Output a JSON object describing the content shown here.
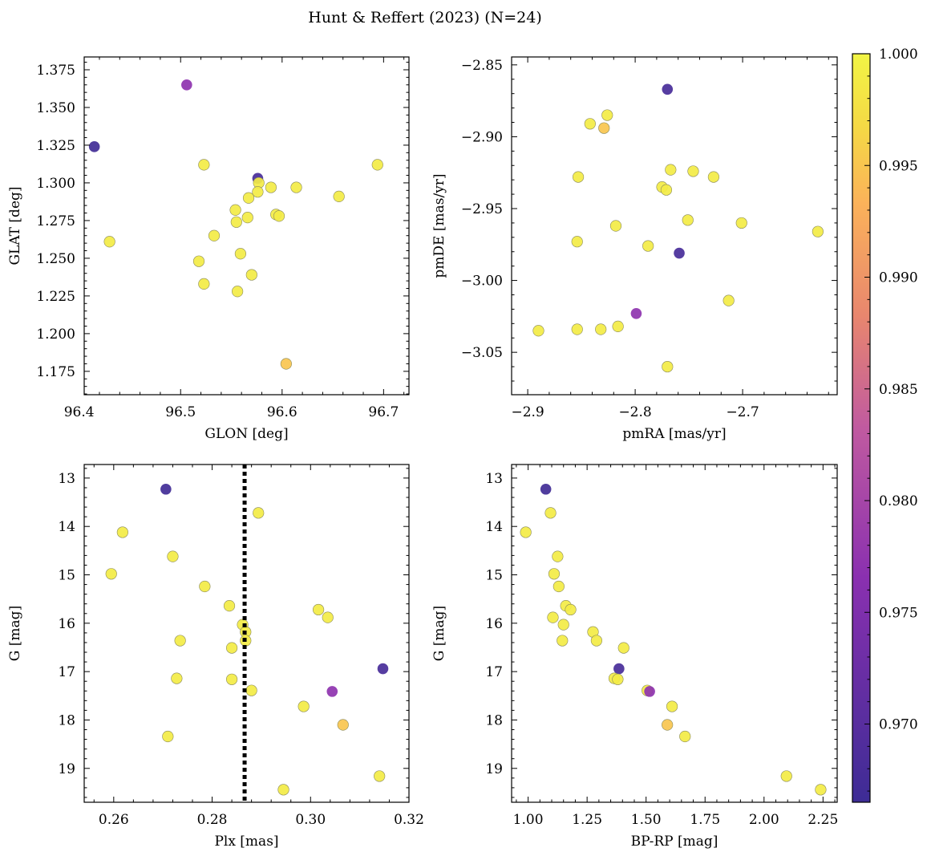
{
  "figure": {
    "title": "Hunt & Reffert (2023) (N=24)"
  },
  "chart_data": [
    {
      "type": "scatter",
      "xlabel": "GLON [deg]",
      "ylabel": "GLAT [deg]",
      "xlim": [
        96.405,
        96.725
      ],
      "ylim": [
        1.1595,
        1.3835
      ],
      "xticks": [
        96.4,
        96.5,
        96.6,
        96.7
      ],
      "xtick_labels": [
        "96.4",
        "96.5",
        "96.6",
        "96.7"
      ],
      "yticks": [
        1.175,
        1.2,
        1.225,
        1.25,
        1.275,
        1.3,
        1.325,
        1.35,
        1.375
      ],
      "ytick_labels": [
        "1.175",
        "1.200",
        "1.225",
        "1.250",
        "1.275",
        "1.300",
        "1.325",
        "1.350",
        "1.375"
      ],
      "y_inverted": false,
      "grid": false,
      "points": [
        {
          "x": 96.506,
          "y": 1.365,
          "p": 0.977
        },
        {
          "x": 96.415,
          "y": 1.324,
          "p": 0.967
        },
        {
          "x": 96.523,
          "y": 1.312,
          "p": 0.999
        },
        {
          "x": 96.694,
          "y": 1.312,
          "p": 0.999
        },
        {
          "x": 96.576,
          "y": 1.303,
          "p": 0.968
        },
        {
          "x": 96.577,
          "y": 1.3,
          "p": 0.999
        },
        {
          "x": 96.589,
          "y": 1.297,
          "p": 0.999
        },
        {
          "x": 96.614,
          "y": 1.297,
          "p": 0.999
        },
        {
          "x": 96.576,
          "y": 1.294,
          "p": 0.999
        },
        {
          "x": 96.567,
          "y": 1.29,
          "p": 0.999
        },
        {
          "x": 96.656,
          "y": 1.291,
          "p": 0.999
        },
        {
          "x": 96.554,
          "y": 1.282,
          "p": 0.999
        },
        {
          "x": 96.594,
          "y": 1.279,
          "p": 0.999
        },
        {
          "x": 96.597,
          "y": 1.278,
          "p": 0.999
        },
        {
          "x": 96.566,
          "y": 1.277,
          "p": 0.999
        },
        {
          "x": 96.555,
          "y": 1.274,
          "p": 0.999
        },
        {
          "x": 96.533,
          "y": 1.265,
          "p": 0.999
        },
        {
          "x": 96.43,
          "y": 1.261,
          "p": 0.999
        },
        {
          "x": 96.559,
          "y": 1.253,
          "p": 0.999
        },
        {
          "x": 96.518,
          "y": 1.248,
          "p": 0.999
        },
        {
          "x": 96.57,
          "y": 1.239,
          "p": 0.999
        },
        {
          "x": 96.523,
          "y": 1.233,
          "p": 0.999
        },
        {
          "x": 96.556,
          "y": 1.228,
          "p": 0.999
        },
        {
          "x": 96.604,
          "y": 1.18,
          "p": 0.995
        }
      ]
    },
    {
      "type": "scatter",
      "xlabel": "pmRA [mas/yr]",
      "ylabel": "pmDE [mas/yr]",
      "xlim": [
        -2.915,
        -2.612
      ],
      "ylim": [
        -3.0795,
        -2.8445
      ],
      "xticks": [
        -2.9,
        -2.8,
        -2.7
      ],
      "xtick_labels": [
        "−2.9",
        "−2.8",
        "−2.7"
      ],
      "yticks": [
        -3.05,
        -3.0,
        -2.95,
        -2.9,
        -2.85
      ],
      "ytick_labels": [
        "−3.05",
        "−3.00",
        "−2.95",
        "−2.90",
        "−2.85"
      ],
      "y_inverted": false,
      "grid": false,
      "points": [
        {
          "x": -2.77,
          "y": -2.867,
          "p": 0.968
        },
        {
          "x": -2.826,
          "y": -2.885,
          "p": 0.999
        },
        {
          "x": -2.842,
          "y": -2.891,
          "p": 0.999
        },
        {
          "x": -2.829,
          "y": -2.894,
          "p": 0.995
        },
        {
          "x": -2.767,
          "y": -2.923,
          "p": 0.999
        },
        {
          "x": -2.746,
          "y": -2.924,
          "p": 0.999
        },
        {
          "x": -2.727,
          "y": -2.928,
          "p": 0.999
        },
        {
          "x": -2.853,
          "y": -2.928,
          "p": 0.999
        },
        {
          "x": -2.775,
          "y": -2.935,
          "p": 0.999
        },
        {
          "x": -2.771,
          "y": -2.937,
          "p": 0.999
        },
        {
          "x": -2.751,
          "y": -2.958,
          "p": 0.999
        },
        {
          "x": -2.701,
          "y": -2.96,
          "p": 0.999
        },
        {
          "x": -2.818,
          "y": -2.962,
          "p": 0.999
        },
        {
          "x": -2.63,
          "y": -2.966,
          "p": 0.999
        },
        {
          "x": -2.854,
          "y": -2.973,
          "p": 0.999
        },
        {
          "x": -2.788,
          "y": -2.976,
          "p": 0.999
        },
        {
          "x": -2.759,
          "y": -2.981,
          "p": 0.968
        },
        {
          "x": -2.713,
          "y": -3.014,
          "p": 0.999
        },
        {
          "x": -2.799,
          "y": -3.023,
          "p": 0.977
        },
        {
          "x": -2.816,
          "y": -3.032,
          "p": 0.999
        },
        {
          "x": -2.89,
          "y": -3.035,
          "p": 0.999
        },
        {
          "x": -2.854,
          "y": -3.034,
          "p": 0.999
        },
        {
          "x": -2.832,
          "y": -3.034,
          "p": 0.999
        },
        {
          "x": -2.77,
          "y": -3.06,
          "p": 0.999
        }
      ]
    },
    {
      "type": "scatter",
      "xlabel": "Plx [mas]",
      "ylabel": "G [mag]",
      "xlim": [
        0.254,
        0.32
      ],
      "ylim": [
        19.7,
        12.72
      ],
      "xticks": [
        0.26,
        0.28,
        0.3,
        0.32
      ],
      "xtick_labels": [
        "0.26",
        "0.28",
        "0.30",
        "0.32"
      ],
      "yticks": [
        13,
        14,
        15,
        16,
        17,
        18,
        19
      ],
      "ytick_labels": [
        "13",
        "14",
        "15",
        "16",
        "17",
        "18",
        "19"
      ],
      "y_inverted": true,
      "grid": false,
      "vline": {
        "x": 0.2866,
        "style": "dotted",
        "color": "#000000"
      },
      "points": [
        {
          "x": 0.2706,
          "y": 13.23,
          "p": 0.967
        },
        {
          "x": 0.2894,
          "y": 13.72,
          "p": 0.999
        },
        {
          "x": 0.2618,
          "y": 14.12,
          "p": 0.999
        },
        {
          "x": 0.272,
          "y": 14.62,
          "p": 0.999
        },
        {
          "x": 0.2595,
          "y": 14.98,
          "p": 0.999
        },
        {
          "x": 0.2785,
          "y": 15.24,
          "p": 0.999
        },
        {
          "x": 0.2835,
          "y": 15.64,
          "p": 0.999
        },
        {
          "x": 0.3016,
          "y": 15.72,
          "p": 0.999
        },
        {
          "x": 0.3035,
          "y": 15.88,
          "p": 0.999
        },
        {
          "x": 0.2862,
          "y": 16.03,
          "p": 0.999
        },
        {
          "x": 0.2868,
          "y": 16.18,
          "p": 0.999
        },
        {
          "x": 0.2735,
          "y": 16.36,
          "p": 0.999
        },
        {
          "x": 0.2868,
          "y": 16.36,
          "p": 0.999
        },
        {
          "x": 0.284,
          "y": 16.51,
          "p": 0.999
        },
        {
          "x": 0.3147,
          "y": 16.94,
          "p": 0.968
        },
        {
          "x": 0.2728,
          "y": 17.14,
          "p": 0.999
        },
        {
          "x": 0.284,
          "y": 17.16,
          "p": 0.999
        },
        {
          "x": 0.288,
          "y": 17.39,
          "p": 0.999
        },
        {
          "x": 0.3044,
          "y": 17.41,
          "p": 0.977
        },
        {
          "x": 0.2986,
          "y": 17.72,
          "p": 0.999
        },
        {
          "x": 0.3066,
          "y": 18.1,
          "p": 0.995
        },
        {
          "x": 0.271,
          "y": 18.34,
          "p": 0.999
        },
        {
          "x": 0.314,
          "y": 19.16,
          "p": 0.999
        },
        {
          "x": 0.2945,
          "y": 19.44,
          "p": 0.999
        }
      ]
    },
    {
      "type": "scatter",
      "xlabel": "BP-RP [mag]",
      "ylabel": "G [mag]",
      "xlim": [
        0.93,
        2.31
      ],
      "ylim": [
        19.7,
        12.72
      ],
      "xticks": [
        1.0,
        1.25,
        1.5,
        1.75,
        2.0,
        2.25
      ],
      "xtick_labels": [
        "1.00",
        "1.25",
        "1.50",
        "1.75",
        "2.00",
        "2.25"
      ],
      "yticks": [
        13,
        14,
        15,
        16,
        17,
        18,
        19
      ],
      "ytick_labels": [
        "13",
        "14",
        "15",
        "16",
        "17",
        "18",
        "19"
      ],
      "y_inverted": true,
      "grid": false,
      "points": [
        {
          "x": 1.075,
          "y": 13.23,
          "p": 0.967
        },
        {
          "x": 1.095,
          "y": 13.72,
          "p": 0.999
        },
        {
          "x": 0.99,
          "y": 14.12,
          "p": 0.999
        },
        {
          "x": 1.125,
          "y": 14.62,
          "p": 0.999
        },
        {
          "x": 1.11,
          "y": 14.98,
          "p": 0.999
        },
        {
          "x": 1.13,
          "y": 15.24,
          "p": 0.999
        },
        {
          "x": 1.16,
          "y": 15.64,
          "p": 0.999
        },
        {
          "x": 1.18,
          "y": 15.72,
          "p": 0.999
        },
        {
          "x": 1.105,
          "y": 15.88,
          "p": 0.999
        },
        {
          "x": 1.15,
          "y": 16.03,
          "p": 0.999
        },
        {
          "x": 1.275,
          "y": 16.18,
          "p": 0.999
        },
        {
          "x": 1.145,
          "y": 16.36,
          "p": 0.999
        },
        {
          "x": 1.29,
          "y": 16.36,
          "p": 0.999
        },
        {
          "x": 1.405,
          "y": 16.51,
          "p": 0.999
        },
        {
          "x": 1.385,
          "y": 16.94,
          "p": 0.968
        },
        {
          "x": 1.365,
          "y": 17.14,
          "p": 0.999
        },
        {
          "x": 1.38,
          "y": 17.16,
          "p": 0.999
        },
        {
          "x": 1.505,
          "y": 17.39,
          "p": 0.999
        },
        {
          "x": 1.515,
          "y": 17.41,
          "p": 0.977
        },
        {
          "x": 1.61,
          "y": 17.72,
          "p": 0.999
        },
        {
          "x": 1.59,
          "y": 18.1,
          "p": 0.995
        },
        {
          "x": 1.665,
          "y": 18.34,
          "p": 0.999
        },
        {
          "x": 2.095,
          "y": 19.16,
          "p": 0.999
        },
        {
          "x": 2.24,
          "y": 19.44,
          "p": 0.999
        }
      ]
    }
  ],
  "colorbar": {
    "colormap": "plasma",
    "range": [
      0.9665,
      1.0
    ],
    "ticks": [
      0.97,
      0.975,
      0.98,
      0.985,
      0.99,
      0.995,
      1.0
    ],
    "tick_labels": [
      "0.970",
      "0.975",
      "0.980",
      "0.985",
      "0.990",
      "0.995",
      "1.000"
    ],
    "location": "right"
  }
}
